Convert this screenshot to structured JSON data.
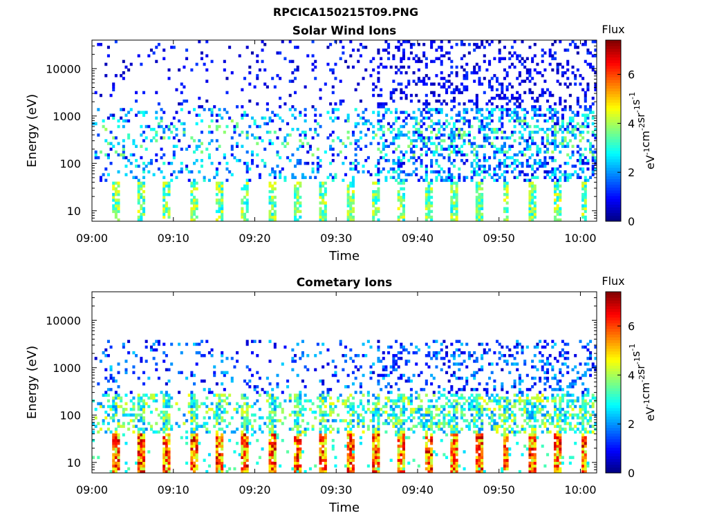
{
  "figure": {
    "title": "RPCICA150215T09.PNG"
  },
  "colorbar": {
    "label": "Flux",
    "unit_base": "eV",
    "unit_parts": [
      {
        "t": "eV",
        "sup": "-1"
      },
      {
        "t": "cm",
        "sup": "-2"
      },
      {
        "t": "sr",
        "sup": "-1"
      },
      {
        "t": "s",
        "sup": "-1"
      }
    ],
    "ticks": [
      0,
      2,
      4,
      6
    ],
    "range": [
      0,
      7.4
    ],
    "colormap": "jet"
  },
  "chart_data": [
    {
      "type": "heatmap",
      "title": "Solar Wind Ions",
      "xlabel": "Time",
      "ylabel": "Energy (eV)",
      "x_ticks": [
        "09:00",
        "09:10",
        "09:20",
        "09:30",
        "09:40",
        "09:50",
        "10:00"
      ],
      "y_ticks": [
        "10",
        "100",
        "1000",
        "10000"
      ],
      "y_scale": "log",
      "ylim": [
        6,
        40000
      ],
      "xlim_minutes_after_0900": [
        0,
        62
      ],
      "value_label": "Flux",
      "bands": [
        {
          "energy_range": [
            6,
            40
          ],
          "pattern": "periodic bursts every ~3.2 min",
          "peak_flux": 4.5
        },
        {
          "energy_range": [
            100,
            1000
          ],
          "pattern": "patchy",
          "peak_flux": 4.0
        },
        {
          "energy_range": [
            1000,
            40000
          ],
          "pattern": "sparse, denser after 09:35",
          "peak_flux": 2.0
        }
      ]
    },
    {
      "type": "heatmap",
      "title": "Cometary Ions",
      "xlabel": "Time",
      "ylabel": "Energy (eV)",
      "x_ticks": [
        "09:00",
        "09:10",
        "09:20",
        "09:30",
        "09:40",
        "09:50",
        "10:00"
      ],
      "y_ticks": [
        "10",
        "100",
        "1000",
        "10000"
      ],
      "y_scale": "log",
      "ylim": [
        6,
        40000
      ],
      "xlim_minutes_after_0900": [
        0,
        62
      ],
      "value_label": "Flux",
      "bands": [
        {
          "energy_range": [
            6,
            40
          ],
          "pattern": "periodic bursts every ~3.2 min",
          "peak_flux": 7.0
        },
        {
          "energy_range": [
            40,
            300
          ],
          "pattern": "periodic bursts",
          "peak_flux": 4.5
        },
        {
          "energy_range": [
            300,
            4000
          ],
          "pattern": "sparse",
          "peak_flux": 2.0
        }
      ]
    }
  ]
}
